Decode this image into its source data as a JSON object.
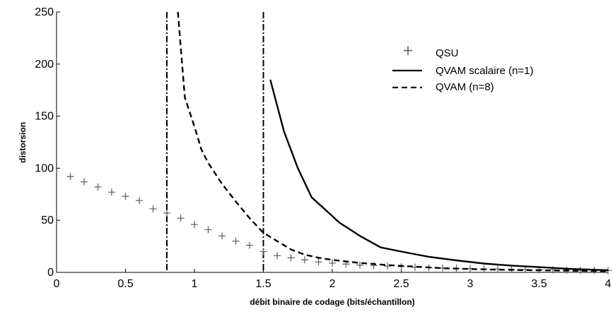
{
  "chart_data": {
    "type": "line",
    "title": "",
    "xlabel": "débit binaire de codage (bits/échantillon)",
    "ylabel": "distorsion",
    "xlim": [
      0,
      4
    ],
    "ylim": [
      0,
      250
    ],
    "x_ticks": [
      "0",
      "0.5",
      "1",
      "1.5",
      "2",
      "2.5",
      "3",
      "3.5",
      "4"
    ],
    "y_ticks": [
      "0",
      "50",
      "100",
      "150",
      "200",
      "250"
    ],
    "grid": false,
    "legend_position": "top-right",
    "vertical_lines": [
      0.8,
      1.5
    ],
    "series": [
      {
        "name": "QSU",
        "style": "plus-markers",
        "color": "#666666",
        "x": [
          0.1,
          0.2,
          0.3,
          0.4,
          0.5,
          0.6,
          0.7,
          0.8,
          0.9,
          1.0,
          1.1,
          1.2,
          1.3,
          1.4,
          1.5,
          1.6,
          1.7,
          1.8,
          1.9,
          2.0,
          2.1,
          2.2,
          2.3,
          2.4,
          2.5,
          2.6,
          2.7,
          2.8,
          2.9,
          3.0,
          3.1,
          3.2,
          3.3,
          3.4,
          3.5,
          3.6,
          3.7,
          3.8,
          3.9,
          4.0
        ],
        "y": [
          92,
          87,
          82,
          77,
          73,
          69,
          61,
          57,
          52,
          46,
          41,
          35,
          30,
          26,
          20,
          16,
          14,
          12,
          10,
          9,
          8,
          7,
          6.5,
          6,
          5.5,
          5,
          4.5,
          4.2,
          4,
          3.7,
          3.4,
          3.2,
          3,
          2.8,
          2.6,
          2.4,
          2.2,
          2,
          1.9,
          1.8
        ]
      },
      {
        "name": "QVAM scalaire (n=1)",
        "style": "solid",
        "color": "#000000",
        "x": [
          1.55,
          1.65,
          1.75,
          1.85,
          1.95,
          2.05,
          2.2,
          2.35,
          2.5,
          2.7,
          2.9,
          3.1,
          3.3,
          3.5,
          3.7,
          3.9,
          4.0
        ],
        "y": [
          185,
          135,
          100,
          72,
          60,
          48,
          35,
          24,
          20,
          15,
          11.5,
          8.5,
          6.5,
          5,
          3.5,
          2.5,
          2
        ]
      },
      {
        "name": "QVAM (n=8)",
        "style": "dashed",
        "color": "#000000",
        "x": [
          0.88,
          0.93,
          1.0,
          1.05,
          1.1,
          1.2,
          1.3,
          1.4,
          1.5,
          1.6,
          1.7,
          1.8,
          1.9,
          2.0,
          2.2,
          2.4,
          2.6,
          2.8,
          3.0,
          3.2,
          3.4,
          3.6,
          3.8,
          4.0
        ],
        "y": [
          250,
          168,
          140,
          118,
          105,
          85,
          68,
          52,
          38,
          30,
          22,
          17,
          14,
          12,
          9,
          7,
          5.5,
          4,
          3.2,
          2.6,
          2.2,
          1.8,
          1.5,
          1.2
        ]
      }
    ]
  }
}
